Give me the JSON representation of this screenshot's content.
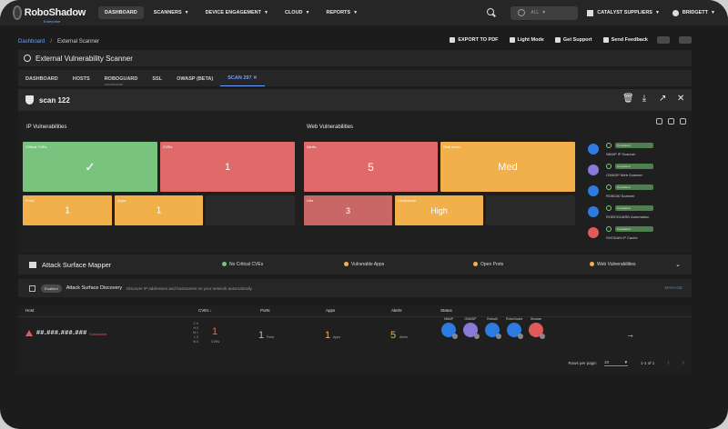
{
  "app": {
    "logo_text": "RoboShadow",
    "logo_sub": "Enterprise"
  },
  "nav": {
    "items": [
      {
        "label": "DASHBOARD",
        "active": true
      },
      {
        "label": "SCANNERS",
        "dropdown": true
      },
      {
        "label": "DEVICE ENGAGEMENT",
        "dropdown": true
      },
      {
        "label": "CLOUD",
        "dropdown": true
      },
      {
        "label": "REPORTS",
        "dropdown": true
      }
    ]
  },
  "top": {
    "scope": "ALL",
    "org": "CATALYST SUPPLIERS",
    "user": "BRIDGETT"
  },
  "breadcrumb": {
    "home": "Dashboard",
    "sep": "/",
    "current": "External Scanner"
  },
  "actions": {
    "export": "EXPORT TO PDF",
    "light": "Light Mode",
    "support": "Get Support",
    "feedback": "Send Feedback"
  },
  "page_title": "External Vulnerability Scanner",
  "tabs": [
    {
      "label": "DASHBOARD"
    },
    {
      "label": "HOSTS"
    },
    {
      "label": "ROBOGUARD",
      "sub": "CONTINUOUS"
    },
    {
      "label": "SSL"
    },
    {
      "label": "OWASP (BETA)"
    },
    {
      "label": "SCAN 297",
      "active": true
    }
  ],
  "scan": {
    "title": "scan 122"
  },
  "ip_vulns": {
    "title": "IP Vulnerabilities",
    "critical": {
      "label": "Critical CVEs",
      "value": "✓"
    },
    "cves": {
      "label": "CVEs",
      "value": "1"
    },
    "ports": {
      "label": "Ports",
      "value": "1"
    },
    "apps": {
      "label": "Apps",
      "value": "1"
    }
  },
  "web_vulns": {
    "title": "Web Vulnerabilities",
    "alerts": {
      "label": "Alerts",
      "value": "5"
    },
    "risk": {
      "label": "Risk Level",
      "value": "Med"
    },
    "urls": {
      "label": "Urls",
      "value": "3"
    },
    "confidence": {
      "label": "Confidence",
      "value": "High"
    }
  },
  "scanners": [
    {
      "name": "NMAP IP Scanner",
      "status": "Completed",
      "color": "#2d7be0"
    },
    {
      "name": "OWASP Web Scanner",
      "status": "Completed",
      "color": "#8a7ad8"
    },
    {
      "name": "ROBOAI Scanner",
      "status": "Completed",
      "color": "#2d7be0"
    },
    {
      "name": "ROBOGUARD Automation",
      "status": "Completed",
      "color": "#2d7be0"
    },
    {
      "name": "SHODAN IP Cache",
      "status": "Completed",
      "color": "#e05a5a"
    }
  ],
  "asm": {
    "title": "Attack Surface Mapper",
    "items": [
      {
        "label": "No Critical CVEs",
        "color": "#78c37d"
      },
      {
        "label": "Vulnerable Apps",
        "color": "#f2b04a"
      },
      {
        "label": "Open Ports",
        "color": "#f2b04a"
      },
      {
        "label": "Web Vulnerabilities",
        "color": "#f2b04a"
      }
    ]
  },
  "discovery": {
    "toggle": "Enabled",
    "title": "Attack Surface Discovery",
    "desc": "Discover IP addresses and hostnames on your network automatically.",
    "manage": "MANAGE"
  },
  "table": {
    "headers": {
      "host": "Host",
      "cves": "CVEs",
      "ports": "Ports",
      "apps": "Apps",
      "alerts": "Alerts",
      "status": "Status"
    },
    "rows": [
      {
        "host": "##.###.###.###",
        "tag": "Vulnerable",
        "sev": [
          "C 0",
          "H 0",
          "M 1",
          "L 0",
          "N 0"
        ],
        "cves": "1",
        "cves_sub": "CVEs",
        "ports": "1",
        "ports_sub": "Ports",
        "apps": "1",
        "apps_sub": "Apps",
        "alerts": "5",
        "alerts_sub": "Alerts",
        "status": [
          {
            "label": "NMAP",
            "color": "#2d7be0"
          },
          {
            "label": "OWASP",
            "color": "#8a7ad8"
          },
          {
            "label": "RoboAI",
            "color": "#2d7be0"
          },
          {
            "label": "RoboGuard",
            "color": "#2d7be0"
          },
          {
            "label": "Shodan",
            "color": "#e05a5a"
          }
        ]
      }
    ]
  },
  "pager": {
    "label": "Rows per page:",
    "value": "10",
    "range": "1-1 of 1"
  }
}
